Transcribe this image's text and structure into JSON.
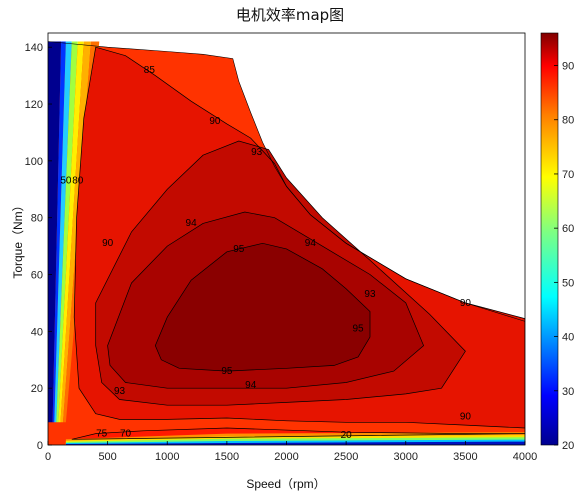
{
  "chart_data": {
    "type": "heatmap",
    "title": "电机效率map图",
    "xlabel": "Speed（rpm）",
    "ylabel": "Torque（Nm）",
    "xlim": [
      0,
      4000
    ],
    "ylim": [
      0,
      145
    ],
    "x_ticks": [
      0,
      500,
      1000,
      1500,
      2000,
      2500,
      3000,
      3500,
      4000
    ],
    "y_ticks": [
      0,
      20,
      40,
      60,
      80,
      100,
      120,
      140
    ],
    "colorbar": {
      "min": 20,
      "max": 96,
      "ticks": [
        20,
        30,
        40,
        50,
        60,
        70,
        80,
        90
      ],
      "colormap": "jet"
    },
    "max_torque_curve": [
      [
        0,
        142
      ],
      [
        500,
        140
      ],
      [
        1000,
        138.5
      ],
      [
        1300,
        137.5
      ],
      [
        1550,
        136
      ],
      [
        1600,
        128
      ],
      [
        1700,
        117
      ],
      [
        1800,
        106.5
      ],
      [
        1900,
        98
      ],
      [
        2000,
        91
      ],
      [
        2200,
        81
      ],
      [
        2500,
        71
      ],
      [
        3000,
        58.5
      ],
      [
        3500,
        50
      ],
      [
        4000,
        43.5
      ]
    ],
    "efficiency_regions": [
      {
        "level": 85,
        "color": "#ff1a00",
        "boundary": [
          [
            200,
            2
          ],
          [
            400,
            4
          ],
          [
            800,
            5
          ],
          [
            1500,
            6
          ],
          [
            2500,
            4.5
          ],
          [
            3500,
            4
          ],
          [
            4000,
            4
          ]
        ]
      },
      {
        "level": 90,
        "color": "#e61400",
        "boundary": [
          [
            400,
            140
          ],
          [
            650,
            137
          ],
          [
            900,
            130
          ],
          [
            1200,
            121
          ],
          [
            1500,
            113
          ],
          [
            1700,
            108
          ],
          [
            1900,
            99
          ],
          [
            2000,
            91
          ],
          [
            2200,
            81
          ],
          [
            2500,
            71
          ],
          [
            3000,
            58.5
          ],
          [
            3500,
            50
          ],
          [
            4000,
            44.5
          ],
          [
            4000,
            6
          ],
          [
            3500,
            7
          ],
          [
            3000,
            8
          ],
          [
            2500,
            8
          ],
          [
            2000,
            8.5
          ],
          [
            1500,
            9.5
          ],
          [
            1000,
            9
          ],
          [
            600,
            9
          ],
          [
            400,
            11
          ],
          [
            260,
            20
          ],
          [
            220,
            45
          ],
          [
            240,
            80
          ],
          [
            300,
            115
          ]
        ]
      },
      {
        "level": 93,
        "color": "#c20a00",
        "boundary": [
          [
            400,
            50
          ],
          [
            700,
            75
          ],
          [
            1000,
            90
          ],
          [
            1300,
            102
          ],
          [
            1600,
            107
          ],
          [
            1850,
            104
          ],
          [
            2000,
            94
          ],
          [
            2300,
            80
          ],
          [
            2700,
            65
          ],
          [
            3200,
            46
          ],
          [
            3500,
            33
          ],
          [
            3300,
            20
          ],
          [
            3000,
            18
          ],
          [
            2500,
            16
          ],
          [
            2000,
            15
          ],
          [
            1500,
            14
          ],
          [
            1000,
            14
          ],
          [
            600,
            16
          ],
          [
            450,
            22
          ],
          [
            400,
            35
          ]
        ]
      },
      {
        "level": 94,
        "color": "#a80300",
        "boundary": [
          [
            500,
            35
          ],
          [
            700,
            57
          ],
          [
            1000,
            70
          ],
          [
            1300,
            78
          ],
          [
            1650,
            82
          ],
          [
            1900,
            80
          ],
          [
            2300,
            70
          ],
          [
            2700,
            60
          ],
          [
            3000,
            50
          ],
          [
            3150,
            35
          ],
          [
            2900,
            26
          ],
          [
            2500,
            22
          ],
          [
            2000,
            20
          ],
          [
            1500,
            20
          ],
          [
            1000,
            20
          ],
          [
            650,
            22
          ],
          [
            520,
            28
          ]
        ]
      },
      {
        "level": 95,
        "color": "#8a0000",
        "boundary": [
          [
            900,
            35
          ],
          [
            1000,
            45
          ],
          [
            1200,
            58
          ],
          [
            1500,
            68
          ],
          [
            1800,
            71
          ],
          [
            2000,
            69
          ],
          [
            2300,
            62
          ],
          [
            2500,
            55
          ],
          [
            2700,
            47
          ],
          [
            2700,
            38
          ],
          [
            2600,
            31
          ],
          [
            2400,
            28
          ],
          [
            2000,
            27
          ],
          [
            1500,
            26
          ],
          [
            1100,
            27
          ],
          [
            950,
            30
          ]
        ]
      }
    ],
    "contour_labels": [
      "20",
      "50",
      "70",
      "75",
      "80",
      "85",
      "90",
      "93",
      "94",
      "95"
    ]
  }
}
